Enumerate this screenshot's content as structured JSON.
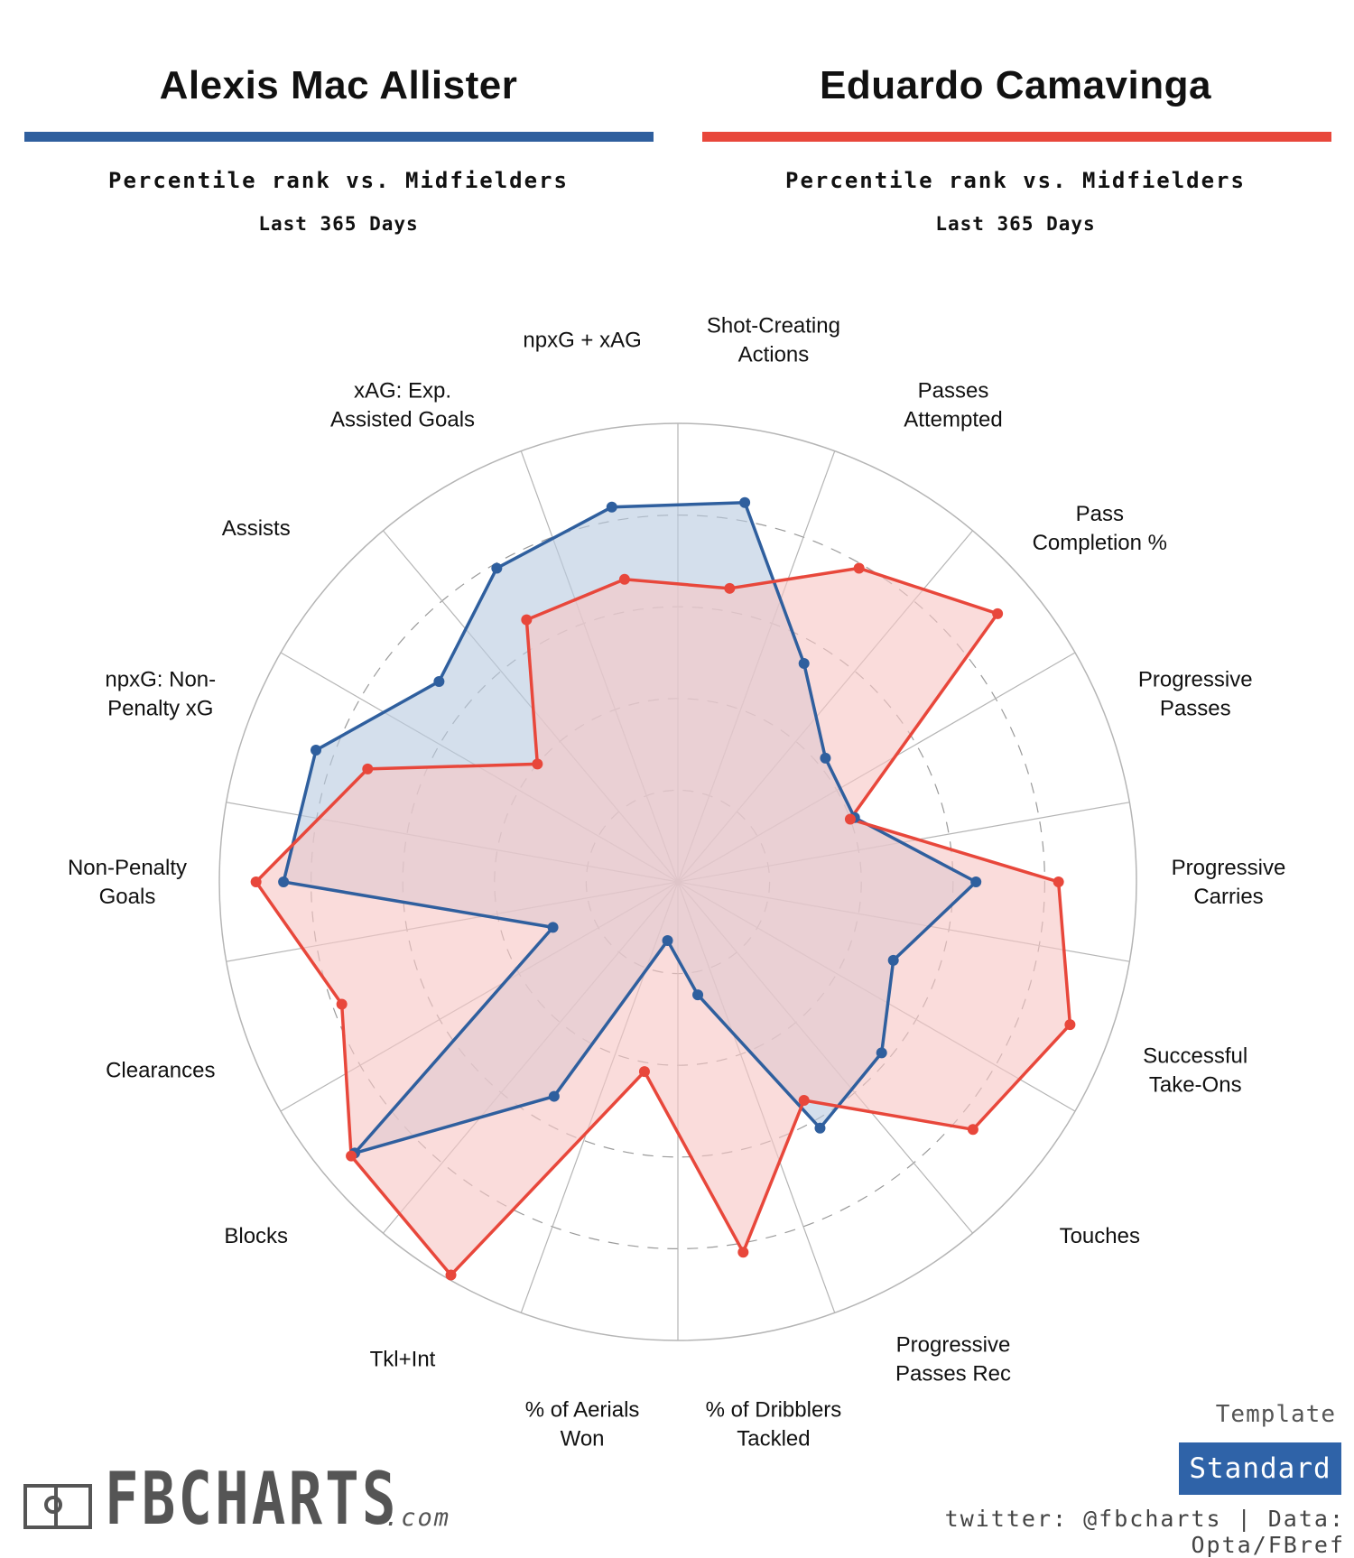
{
  "players": [
    {
      "name": "Alexis Mac Allister",
      "color": "#2f5f9e",
      "subtitle": "Percentile rank vs. Midfielders",
      "period": "Last 365 Days"
    },
    {
      "name": "Eduardo Camavinga",
      "color": "#e8473b",
      "subtitle": "Percentile rank vs. Midfielders",
      "period": "Last 365 Days"
    }
  ],
  "chart_data": {
    "type": "radar",
    "range": [
      0,
      100
    ],
    "grid": "dashed rings at 20, 40, 60, 80; solid outer ring at 100",
    "categories": [
      "Shot-Creating Actions",
      "Passes Attempted",
      "Pass Completion %",
      "Progressive Passes",
      "Progressive Carries",
      "Successful Take-Ons",
      "Touches",
      "Progressive Passes Rec",
      "% of Dribblers Tackled",
      "% of Aerials Won",
      "Tkl+Int",
      "Blocks",
      "Clearances",
      "Non-Penalty Goals",
      "npxG: Non-Penalty xG",
      "Assists",
      "xAG: Exp. Assisted Goals",
      "npxG + xAG"
    ],
    "category_labels": [
      [
        "Shot-Creating",
        "Actions"
      ],
      [
        "Passes",
        "Attempted"
      ],
      [
        "Pass",
        "Completion %"
      ],
      [
        "Progressive",
        "Passes"
      ],
      [
        "Progressive",
        "Carries"
      ],
      [
        "Successful",
        "Take-Ons"
      ],
      [
        "Touches"
      ],
      [
        "Progressive",
        "Passes Rec"
      ],
      [
        "% of Dribblers",
        "Tackled"
      ],
      [
        "% of Aerials",
        "Won"
      ],
      [
        "Tkl+Int"
      ],
      [
        "Blocks"
      ],
      [
        "Clearances"
      ],
      [
        "Non-Penalty",
        "Goals"
      ],
      [
        "npxG: Non-",
        "Penalty xG"
      ],
      [
        "Assists"
      ],
      [
        "xAG: Exp.",
        "Assisted Goals"
      ],
      [
        "npxG + xAG"
      ]
    ],
    "series": [
      {
        "name": "Alexis Mac Allister",
        "color": "#2f5f9e",
        "fill": "#b9cce0",
        "values": [
          84,
          55,
          42,
          41,
          65,
          50,
          58,
          62,
          25,
          13,
          54,
          92,
          29,
          86,
          84,
          68,
          79,
          83
        ]
      },
      {
        "name": "Eduardo Camavinga",
        "color": "#e8473b",
        "fill": "#f7c7c5",
        "values": [
          65,
          79,
          91,
          40,
          83,
          91,
          84,
          55,
          82,
          42,
          99,
          93,
          78,
          92,
          72,
          40,
          66,
          67
        ]
      }
    ]
  },
  "footer": {
    "logo_text": "FBCHARTS",
    "logo_suffix": ".com",
    "template_label": "Template",
    "template_value": "Standard",
    "credits": "twitter: @fbcharts | Data: Opta/FBref"
  }
}
